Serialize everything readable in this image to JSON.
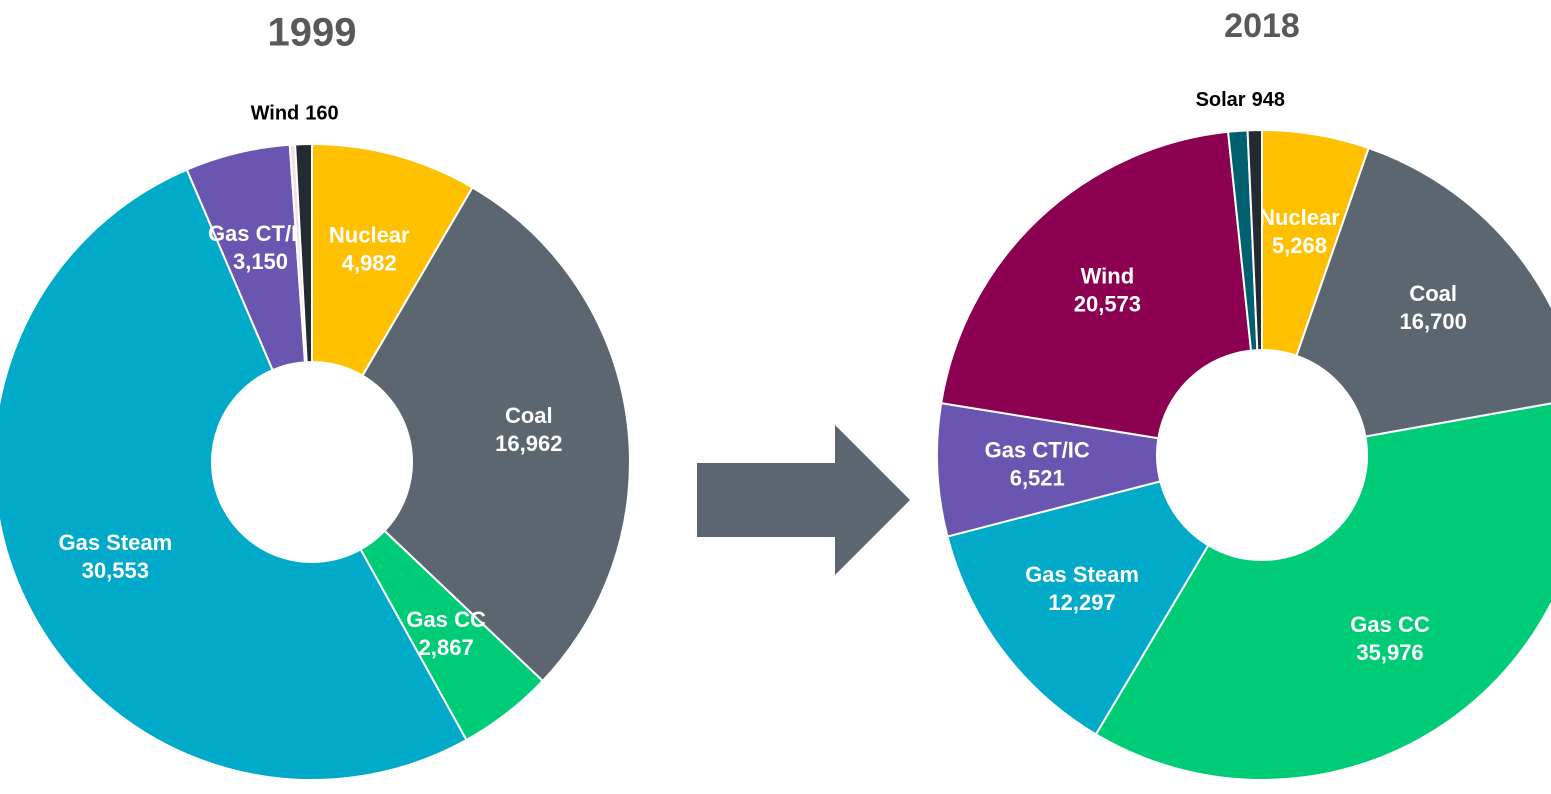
{
  "chart_data": [
    {
      "type": "donut",
      "title": "1999",
      "categories": [
        "Nuclear",
        "Coal",
        "Gas CC",
        "Gas Steam",
        "Gas CT/IC",
        "Wind",
        null
      ],
      "values": [
        4982,
        16962,
        2867,
        30553,
        3150,
        160,
        500
      ],
      "value_labels": [
        "4,982",
        "16,962",
        "2,867",
        "30,553",
        "3,150",
        "160",
        null
      ],
      "colors": [
        "#ffc000",
        "#5c6670",
        "#00cc77",
        "#00aac8",
        "#6a55b0",
        "#f3dfe9",
        "#232a30"
      ]
    },
    {
      "type": "donut",
      "title": "2018",
      "categories": [
        "Nuclear",
        "Coal",
        "Gas CC",
        "Gas Steam",
        "Gas CT/IC",
        "Wind",
        "Solar",
        null
      ],
      "values": [
        5268,
        16700,
        35976,
        12297,
        6521,
        20573,
        948,
        700
      ],
      "value_labels": [
        "5,268",
        "16,700",
        "35,976",
        "12,297",
        "6,521",
        "20,573",
        "948",
        null
      ],
      "colors": [
        "#ffc000",
        "#5c6670",
        "#00cc77",
        "#00aac8",
        "#6a55b0",
        "#8b0050",
        "#006070",
        "#232a30"
      ]
    }
  ]
}
